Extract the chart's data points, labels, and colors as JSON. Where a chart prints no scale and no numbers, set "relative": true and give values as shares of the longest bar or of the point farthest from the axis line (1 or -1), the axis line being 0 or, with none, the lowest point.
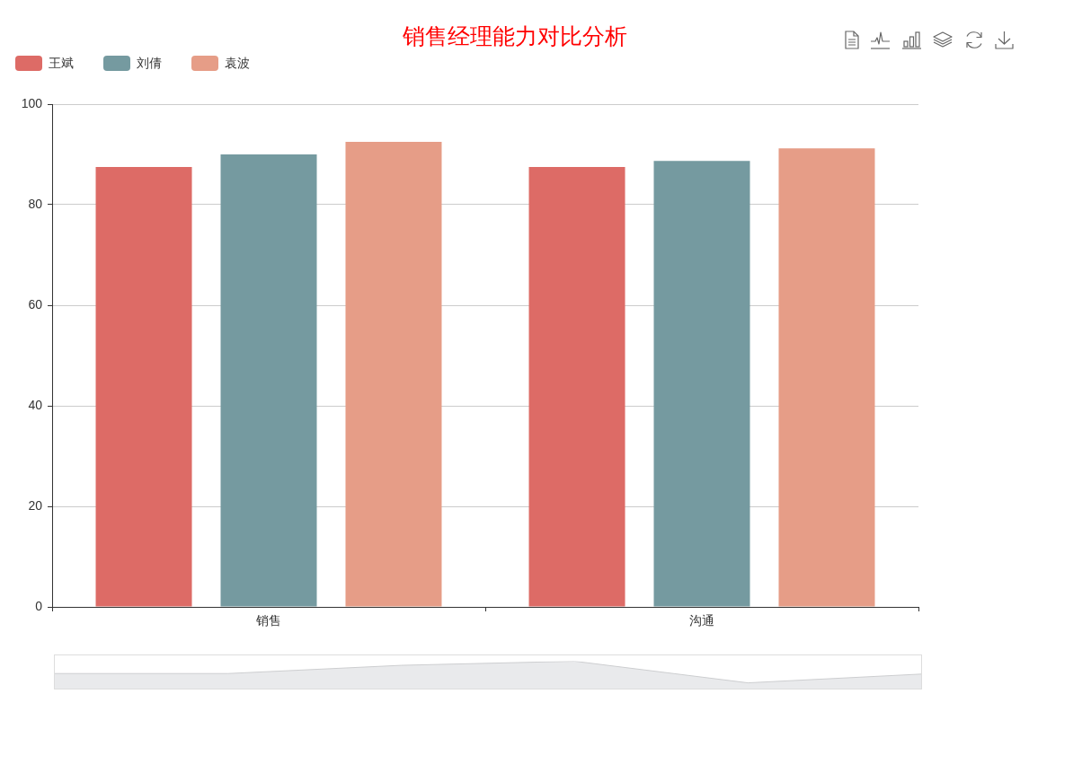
{
  "chart_data": [
    {
      "type": "bar",
      "title": "销售经理能力对比分析",
      "categories": [
        "销售",
        "沟通"
      ],
      "series": [
        {
          "name": "王斌",
          "color": "#dd6b66",
          "values": [
            87.5,
            87.5
          ]
        },
        {
          "name": "刘倩",
          "color": "#759aa0",
          "values": [
            90,
            88.7
          ]
        },
        {
          "name": "袁波",
          "color": "#e69d87",
          "values": [
            92.5,
            91.2
          ]
        }
      ],
      "ylim": [
        0,
        100
      ],
      "yticks": [
        0,
        20,
        40,
        60,
        80,
        100
      ],
      "grid": "y",
      "legend": "top left"
    },
    {
      "type": "area",
      "categories": [
        null,
        null,
        null,
        null,
        null,
        null
      ],
      "values": [
        0.55,
        0.55,
        0.85,
        1,
        0.21,
        0.53
      ],
      "color": "#e9eaec",
      "relative": true
    }
  ]
}
